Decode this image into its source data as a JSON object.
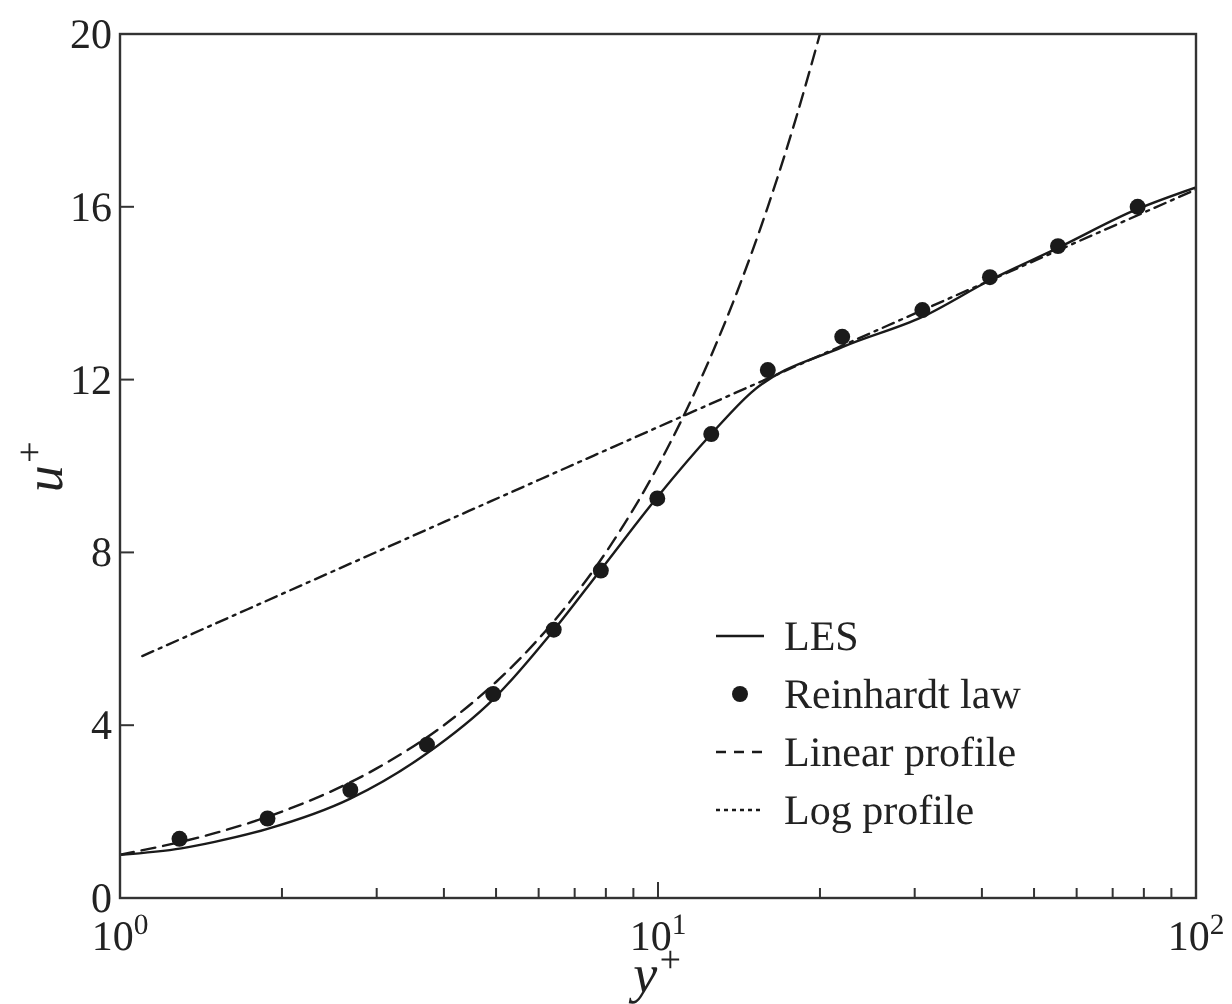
{
  "chart_data": {
    "type": "line",
    "xlabel": "y$^{+}$",
    "ylabel": "u$^{+}$",
    "log": "x",
    "xlim": [
      1,
      100
    ],
    "ylim": [
      0,
      20
    ],
    "xticks": [
      {
        "value": 1,
        "label": "10$^{0}$"
      },
      {
        "value": 2,
        "label": null
      },
      {
        "value": 3,
        "label": null
      },
      {
        "value": 4,
        "label": null
      },
      {
        "value": 5,
        "label": null
      },
      {
        "value": 6,
        "label": null
      },
      {
        "value": 7,
        "label": null
      },
      {
        "value": 8,
        "label": null
      },
      {
        "value": 9,
        "label": null
      },
      {
        "value": 10,
        "label": "10$^{1}$"
      },
      {
        "value": 20,
        "label": null
      },
      {
        "value": 30,
        "label": null
      },
      {
        "value": 40,
        "label": null
      },
      {
        "value": 50,
        "label": null
      },
      {
        "value": 60,
        "label": null
      },
      {
        "value": 70,
        "label": null
      },
      {
        "value": 80,
        "label": null
      },
      {
        "value": 90,
        "label": null
      },
      {
        "value": 100,
        "label": "10$^{2}$"
      }
    ],
    "yticks": [
      0,
      4,
      8,
      12,
      16,
      20
    ],
    "grid": false,
    "legend": "bottom right",
    "series": [
      {
        "name": "LES",
        "color": "#1a1a1a",
        "line_style": "solid",
        "x": [
          1,
          1.3,
          1.5,
          1.88,
          2.68,
          3.72,
          4.94,
          6.4,
          7.83,
          10,
          12.56,
          14.9,
          22,
          31,
          41.4,
          55.4,
          77.9,
          100
        ],
        "values": [
          1.0,
          1.15,
          1.3,
          1.6,
          2.3,
          3.35,
          4.6,
          6.2,
          7.6,
          9.3,
          10.74,
          11.7,
          12.75,
          13.45,
          14.3,
          15.05,
          15.95,
          16.45
        ]
      },
      {
        "name": "Reinhardt law",
        "type": "scatter",
        "color": "#1a1a1a",
        "marker": "circle",
        "x": [
          1.29,
          1.88,
          2.68,
          3.72,
          4.94,
          6.4,
          7.83,
          9.97,
          12.56,
          16.0,
          22.0,
          31.0,
          41.4,
          55.4,
          77.9
        ],
        "values": [
          1.37,
          1.84,
          2.5,
          3.55,
          4.72,
          6.21,
          7.58,
          9.25,
          10.74,
          12.22,
          12.99,
          13.61,
          14.37,
          15.09,
          16.0
        ]
      },
      {
        "name": "Linear profile",
        "color": "#1a1a1a",
        "line_style": "dashed",
        "x": [
          1,
          1.5,
          2,
          3,
          4,
          5,
          6,
          7,
          8,
          10,
          12,
          14,
          16,
          18,
          20
        ],
        "values": [
          1,
          1.5,
          2,
          3,
          4,
          5,
          6,
          7,
          8,
          10,
          12,
          14,
          16,
          18,
          20
        ]
      },
      {
        "name": "Log profile",
        "color": "#1a1a1a",
        "line_style": "dotted",
        "x": [
          1.1,
          10,
          100
        ],
        "values": [
          5.6,
          10.9,
          16.4
        ]
      }
    ]
  }
}
